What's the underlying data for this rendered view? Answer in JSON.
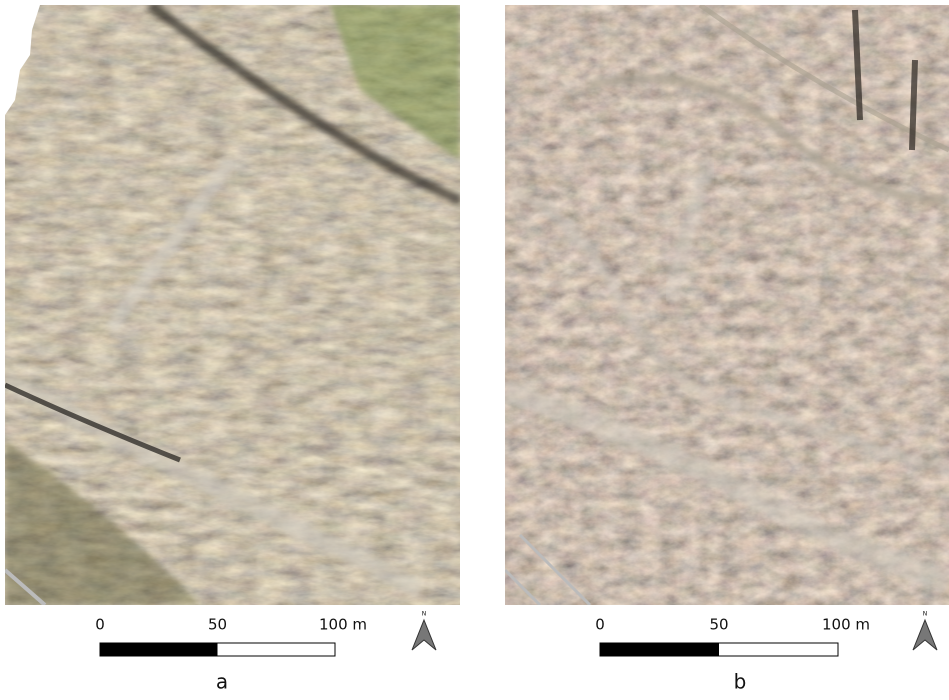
{
  "panels": [
    {
      "label": "a",
      "scale_labels": [
        "0",
        "50",
        "100 m"
      ],
      "north": "N"
    },
    {
      "label": "b",
      "scale_labels": [
        "0",
        "50",
        "100 m"
      ],
      "north": "N"
    }
  ]
}
